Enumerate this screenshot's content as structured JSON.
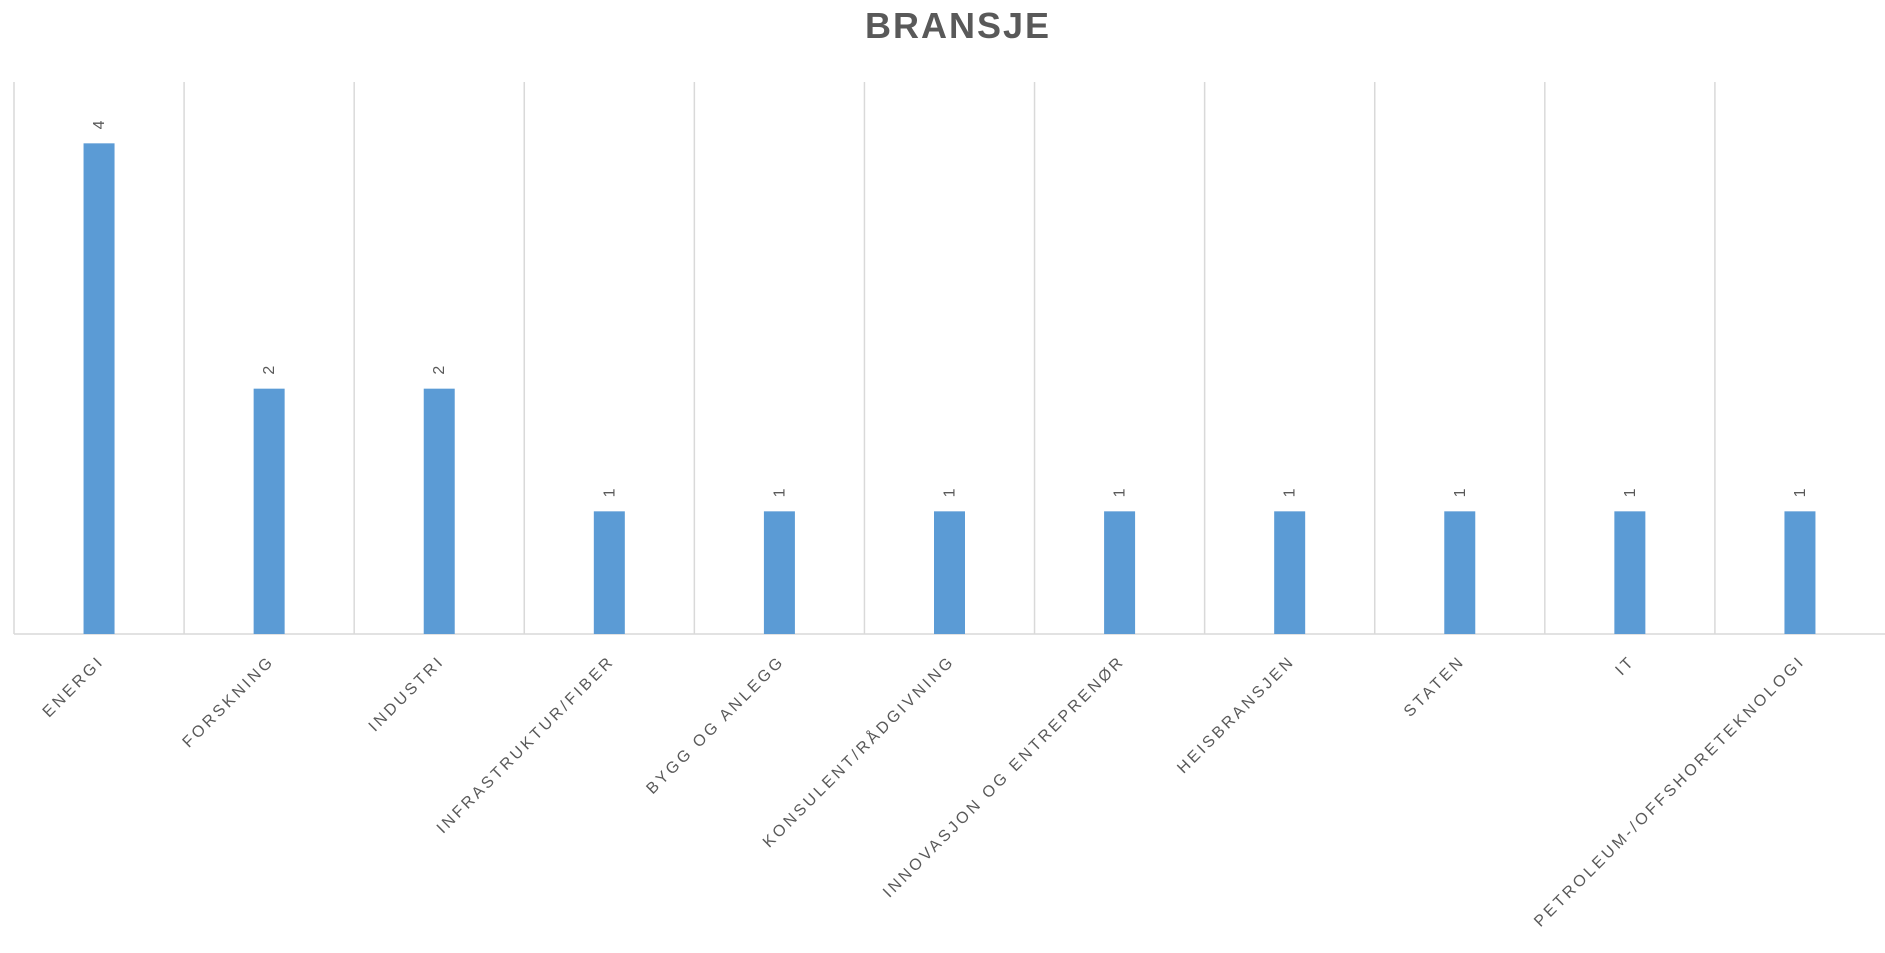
{
  "chart_data": {
    "type": "bar",
    "title": "BRANSJE",
    "categories": [
      "ENERGI",
      "FORSKNING",
      "INDUSTRI",
      "INFRASTRUKTUR/FIBER",
      "BYGG OG ANLEGG",
      "KONSULENT/RÅDGIVNING",
      "INNOVASJON OG ENTREPRENØR",
      "HEISBRANSJEN",
      "STATEN",
      "IT",
      "PETROLEUM-/OFFSHORETEKNOLOGI"
    ],
    "values": [
      4,
      2,
      2,
      1,
      1,
      1,
      1,
      1,
      1,
      1,
      1
    ],
    "color": "#5b9bd5",
    "ylim": [
      0,
      4.5
    ]
  }
}
